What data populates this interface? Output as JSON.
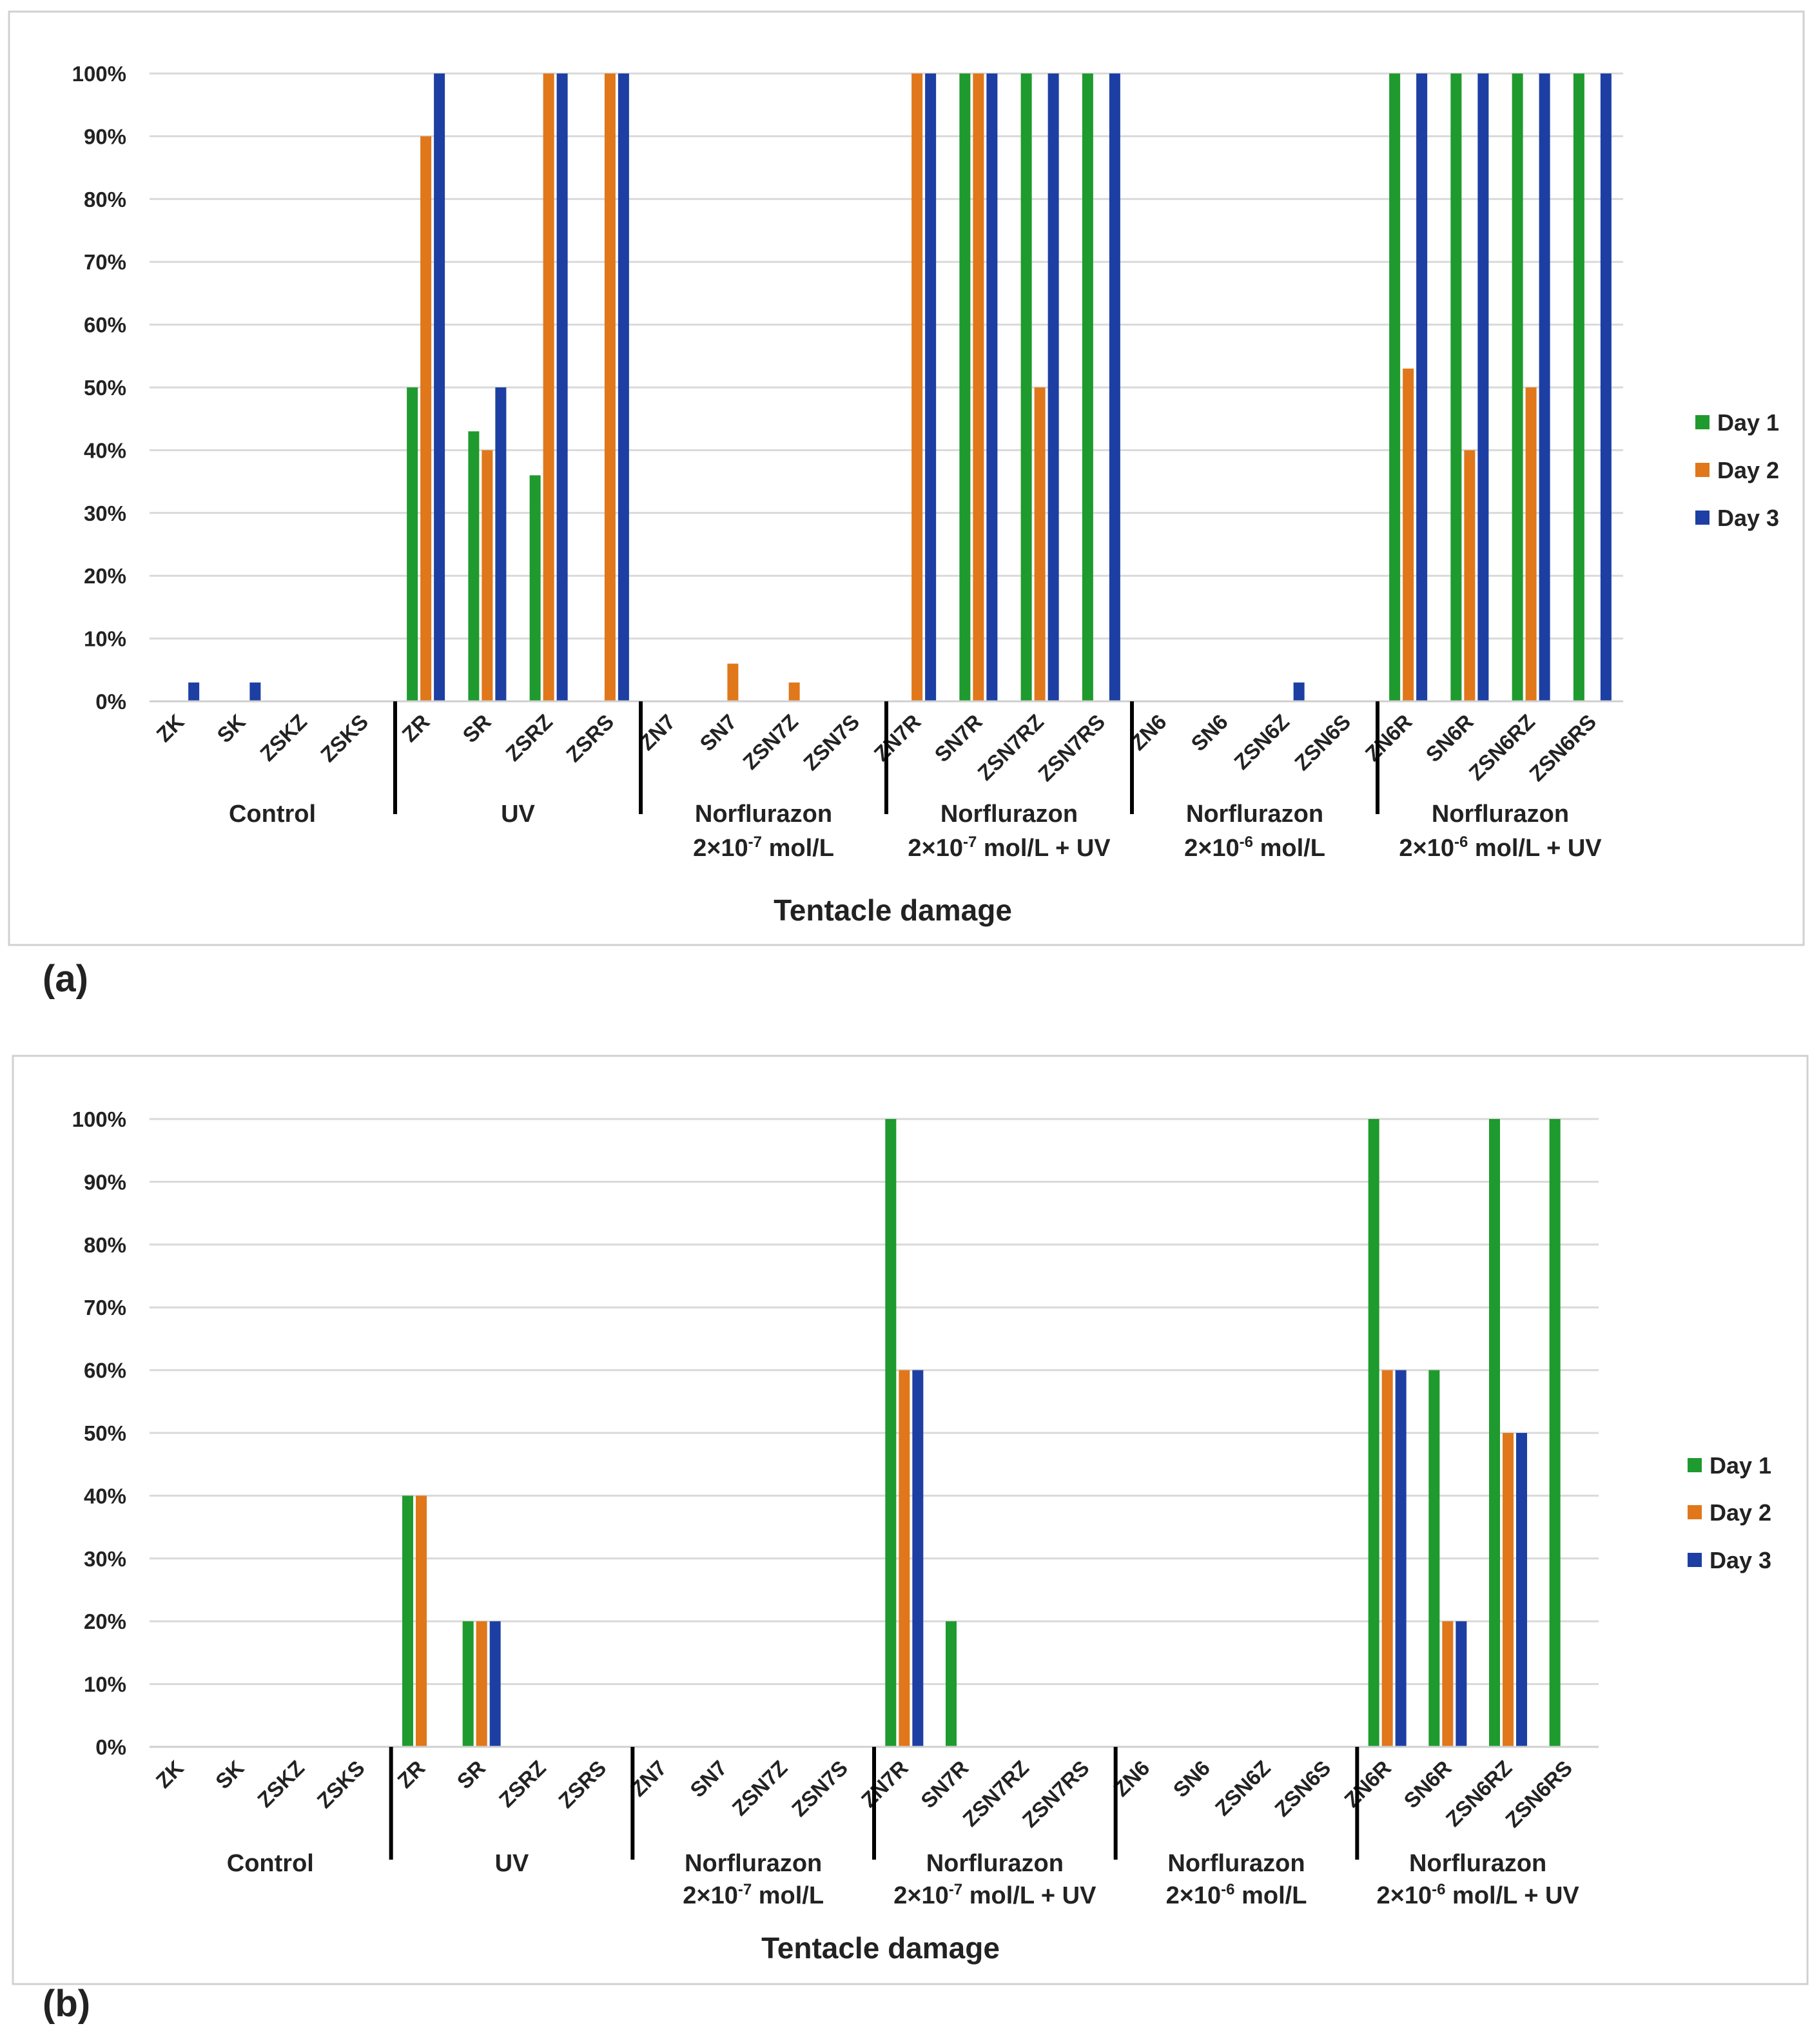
{
  "colors": {
    "day1": "#1f9a2e",
    "day2": "#e0771b",
    "day3": "#1d3fa3"
  },
  "legend": [
    "Day 1",
    "Day 2",
    "Day 3"
  ],
  "y_ticks": [
    "0%",
    "10%",
    "20%",
    "30%",
    "40%",
    "50%",
    "60%",
    "70%",
    "80%",
    "90%",
    "100%"
  ],
  "chart_data": [
    {
      "type": "bar",
      "panel_label": "(a)",
      "xlabel": "Tentacle damage",
      "ylabel": "",
      "ylim": [
        0,
        100
      ],
      "grid": true,
      "legend_position": "right",
      "categories": [
        "ZK",
        "SK",
        "ZSKZ",
        "ZSKS",
        "ZR",
        "SR",
        "ZSRZ",
        "ZSRS",
        "ZN7",
        "SN7",
        "ZSN7Z",
        "ZSN7S",
        "ZN7R",
        "SN7R",
        "ZSN7RZ",
        "ZSN7RS",
        "ZN6",
        "SN6",
        "ZSN6Z",
        "ZSN6S",
        "ZN6R",
        "SN6R",
        "ZSN6RZ",
        "ZSN6RS"
      ],
      "groups": [
        {
          "line1": "Control",
          "sup": "",
          "line2": "",
          "line2b": ""
        },
        {
          "line1": "UV",
          "sup": "",
          "line2": "",
          "line2b": ""
        },
        {
          "line1": "Norflurazon",
          "line2": "2×10",
          "sup": "-7",
          "line2b": " mol/L"
        },
        {
          "line1": "Norflurazon",
          "line2": "2×10",
          "sup": "-7",
          "line2b": " mol/L + UV"
        },
        {
          "line1": "Norflurazon",
          "line2": "2×10",
          "sup": "-6",
          "line2b": " mol/L"
        },
        {
          "line1": "Norflurazon",
          "line2": "2×10",
          "sup": "-6",
          "line2b": " mol/L + UV"
        }
      ],
      "series": [
        {
          "name": "Day 1",
          "values": [
            0,
            0,
            0,
            0,
            50,
            43,
            36,
            0,
            0,
            0,
            0,
            0,
            0,
            100,
            100,
            100,
            0,
            0,
            0,
            0,
            100,
            100,
            100,
            100
          ]
        },
        {
          "name": "Day 2",
          "values": [
            0,
            0,
            0,
            0,
            90,
            40,
            100,
            100,
            0,
            6,
            3,
            0,
            100,
            100,
            50,
            0,
            0,
            0,
            0,
            0,
            53,
            40,
            50,
            0
          ]
        },
        {
          "name": "Day 3",
          "values": [
            3,
            3,
            0,
            0,
            100,
            50,
            100,
            100,
            0,
            0,
            0,
            0,
            100,
            100,
            100,
            100,
            0,
            0,
            3,
            0,
            100,
            100,
            100,
            100
          ]
        }
      ]
    },
    {
      "type": "bar",
      "panel_label": "(b)",
      "xlabel": "Tentacle damage",
      "ylabel": "",
      "ylim": [
        0,
        100
      ],
      "grid": true,
      "legend_position": "right",
      "categories": [
        "ZK",
        "SK",
        "ZSKZ",
        "ZSKS",
        "ZR",
        "SR",
        "ZSRZ",
        "ZSRS",
        "ZN7",
        "SN7",
        "ZSN7Z",
        "ZSN7S",
        "ZN7R",
        "SN7R",
        "ZSN7RZ",
        "ZSN7RS",
        "ZN6",
        "SN6",
        "ZSN6Z",
        "ZSN6S",
        "ZN6R",
        "SN6R",
        "ZSN6RZ",
        "ZSN6RS"
      ],
      "groups": [
        {
          "line1": "Control",
          "sup": "",
          "line2": "",
          "line2b": ""
        },
        {
          "line1": "UV",
          "sup": "",
          "line2": "",
          "line2b": ""
        },
        {
          "line1": "Norflurazon",
          "line2": "2×10",
          "sup": "-7",
          "line2b": " mol/L"
        },
        {
          "line1": "Norflurazon",
          "line2": "2×10",
          "sup": "-7",
          "line2b": " mol/L + UV"
        },
        {
          "line1": "Norflurazon",
          "line2": "2×10",
          "sup": "-6",
          "line2b": " mol/L"
        },
        {
          "line1": "Norflurazon",
          "line2": "2×10",
          "sup": "-6",
          "line2b": " mol/L + UV"
        }
      ],
      "series": [
        {
          "name": "Day 1",
          "values": [
            0,
            0,
            0,
            0,
            40,
            20,
            0,
            0,
            0,
            0,
            0,
            0,
            100,
            20,
            0,
            0,
            0,
            0,
            0,
            0,
            100,
            60,
            100,
            100
          ]
        },
        {
          "name": "Day 2",
          "values": [
            0,
            0,
            0,
            0,
            40,
            20,
            0,
            0,
            0,
            0,
            0,
            0,
            60,
            0,
            0,
            0,
            0,
            0,
            0,
            0,
            60,
            20,
            50,
            0
          ]
        },
        {
          "name": "Day 3",
          "values": [
            0,
            0,
            0,
            0,
            0,
            20,
            0,
            0,
            0,
            0,
            0,
            0,
            60,
            0,
            0,
            0,
            0,
            0,
            0,
            0,
            60,
            20,
            50,
            0
          ]
        }
      ]
    }
  ]
}
